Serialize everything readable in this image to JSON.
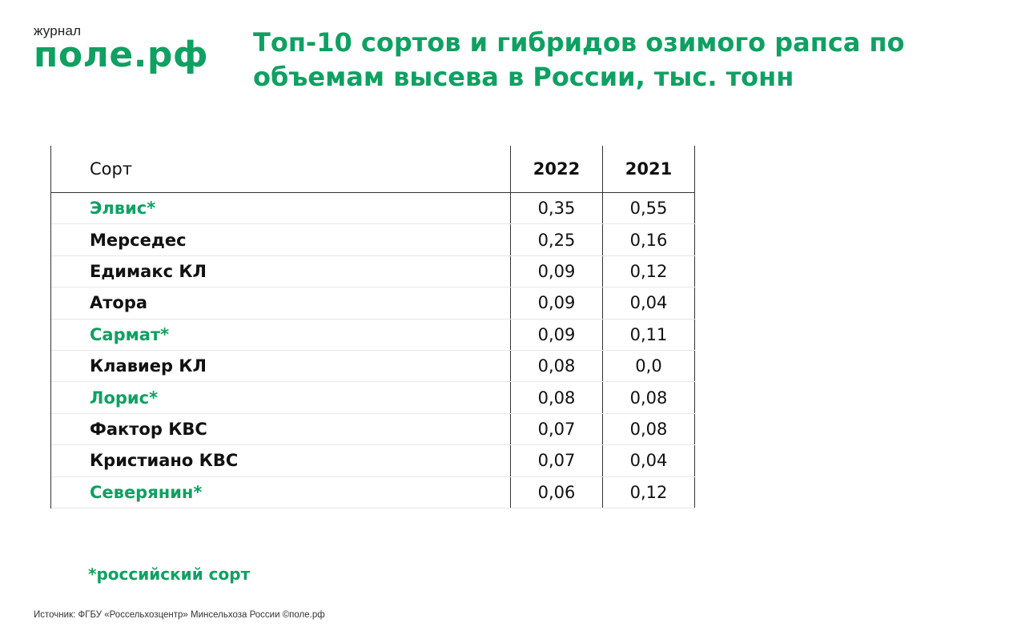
{
  "logo": {
    "small": "журнал",
    "big": "поле.рф"
  },
  "title": "Топ-10 сортов и гибридов озимого рапса по объемам высева в России, тыс. тонн",
  "table": {
    "headers": [
      "Сорт",
      "2022",
      "2021"
    ],
    "rows": [
      {
        "name": "Элвис*",
        "v2022": "0,35",
        "v2021": "0,55",
        "russian": true
      },
      {
        "name": "Мерседес",
        "v2022": "0,25",
        "v2021": "0,16",
        "russian": false
      },
      {
        "name": "Едимакс КЛ",
        "v2022": "0,09",
        "v2021": "0,12",
        "russian": false
      },
      {
        "name": "Атора",
        "v2022": "0,09",
        "v2021": "0,04",
        "russian": false
      },
      {
        "name": "Сармат*",
        "v2022": "0,09",
        "v2021": "0,11",
        "russian": true
      },
      {
        "name": "Клавиер КЛ",
        "v2022": "0,08",
        "v2021": "0,0",
        "russian": false
      },
      {
        "name": "Лорис*",
        "v2022": "0,08",
        "v2021": "0,08",
        "russian": true
      },
      {
        "name": "Фактор КВС",
        "v2022": "0,07",
        "v2021": "0,08",
        "russian": false
      },
      {
        "name": "Кристиано КВС",
        "v2022": "0,07",
        "v2021": "0,04",
        "russian": false
      },
      {
        "name": "Северянин*",
        "v2022": "0,06",
        "v2021": "0,12",
        "russian": true
      }
    ]
  },
  "footnote": "*российский сорт",
  "source": "Источник: ФГБУ «Россельхозцентр» Минсельхоза России ©поле.рф",
  "colors": {
    "accent": "#0fa062",
    "text": "#111111"
  }
}
